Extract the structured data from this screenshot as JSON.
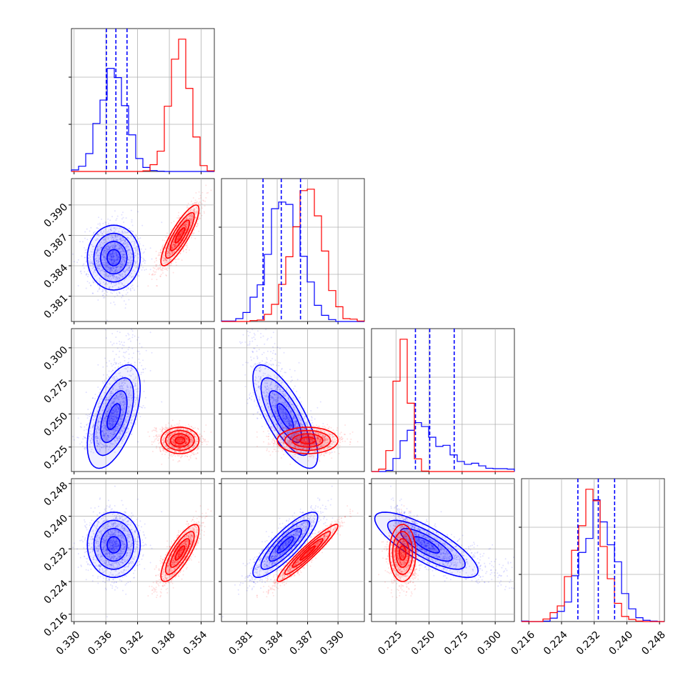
{
  "chart_data": {
    "type": "corner",
    "title": "",
    "grid": true,
    "colors": {
      "series_a": "#0000ff",
      "series_b": "#ff0000"
    },
    "params": [
      {
        "range": [
          0.3295,
          0.3565
        ],
        "ticks": [
          "0.330",
          "0.336",
          "0.342",
          "0.348",
          "0.354"
        ],
        "tick_values": [
          0.33,
          0.336,
          0.342,
          0.348,
          0.354
        ]
      },
      {
        "range": [
          0.3785,
          0.3926
        ],
        "ticks": [
          "0.381",
          "0.384",
          "0.387",
          "0.390"
        ],
        "tick_values": [
          0.381,
          0.384,
          0.387,
          0.39
        ]
      },
      {
        "range": [
          0.2065,
          0.3145
        ],
        "ticks": [
          "0.225",
          "0.250",
          "0.275",
          "0.300"
        ],
        "tick_values": [
          0.225,
          0.25,
          0.275,
          0.3
        ]
      },
      {
        "range": [
          0.2142,
          0.2492
        ],
        "ticks": [
          "0.216",
          "0.224",
          "0.232",
          "0.240",
          "0.248"
        ],
        "tick_values": [
          0.216,
          0.224,
          0.232,
          0.24,
          0.248
        ]
      }
    ],
    "series": [
      {
        "color": "#0000ff",
        "means": [
          0.3375,
          0.3848,
          0.248,
          0.233
        ],
        "sigmas": [
          0.0025,
          0.0016,
          0.017,
          0.004
        ],
        "skew": [
          0,
          0,
          1.6,
          0
        ],
        "corr": [
          [
            1,
            0.0,
            0.55,
            0.0
          ],
          [
            0.0,
            1,
            -0.75,
            0.85
          ],
          [
            0.55,
            -0.75,
            1,
            -0.8
          ],
          [
            0.0,
            0.85,
            -0.8,
            1
          ]
        ],
        "quantiles": [
          [
            0.3361,
            0.3379,
            0.34
          ],
          [
            0.3826,
            0.3844,
            0.3863
          ],
          [
            0.2397,
            0.2505,
            0.269
          ],
          [
            0.228,
            0.233,
            0.237
          ]
        ]
      },
      {
        "color": "#ff0000",
        "means": [
          0.35,
          0.387,
          0.23,
          0.231
        ],
        "sigmas": [
          0.0018,
          0.0015,
          0.005,
          0.0035
        ],
        "skew": [
          0,
          0,
          0,
          0
        ],
        "corr": [
          [
            1,
            0.85,
            0.0,
            0.8
          ],
          [
            0.85,
            1,
            0.0,
            0.95
          ],
          [
            0.0,
            0.0,
            1,
            0.0
          ],
          [
            0.8,
            0.95,
            0.0,
            1
          ]
        ]
      }
    ]
  }
}
